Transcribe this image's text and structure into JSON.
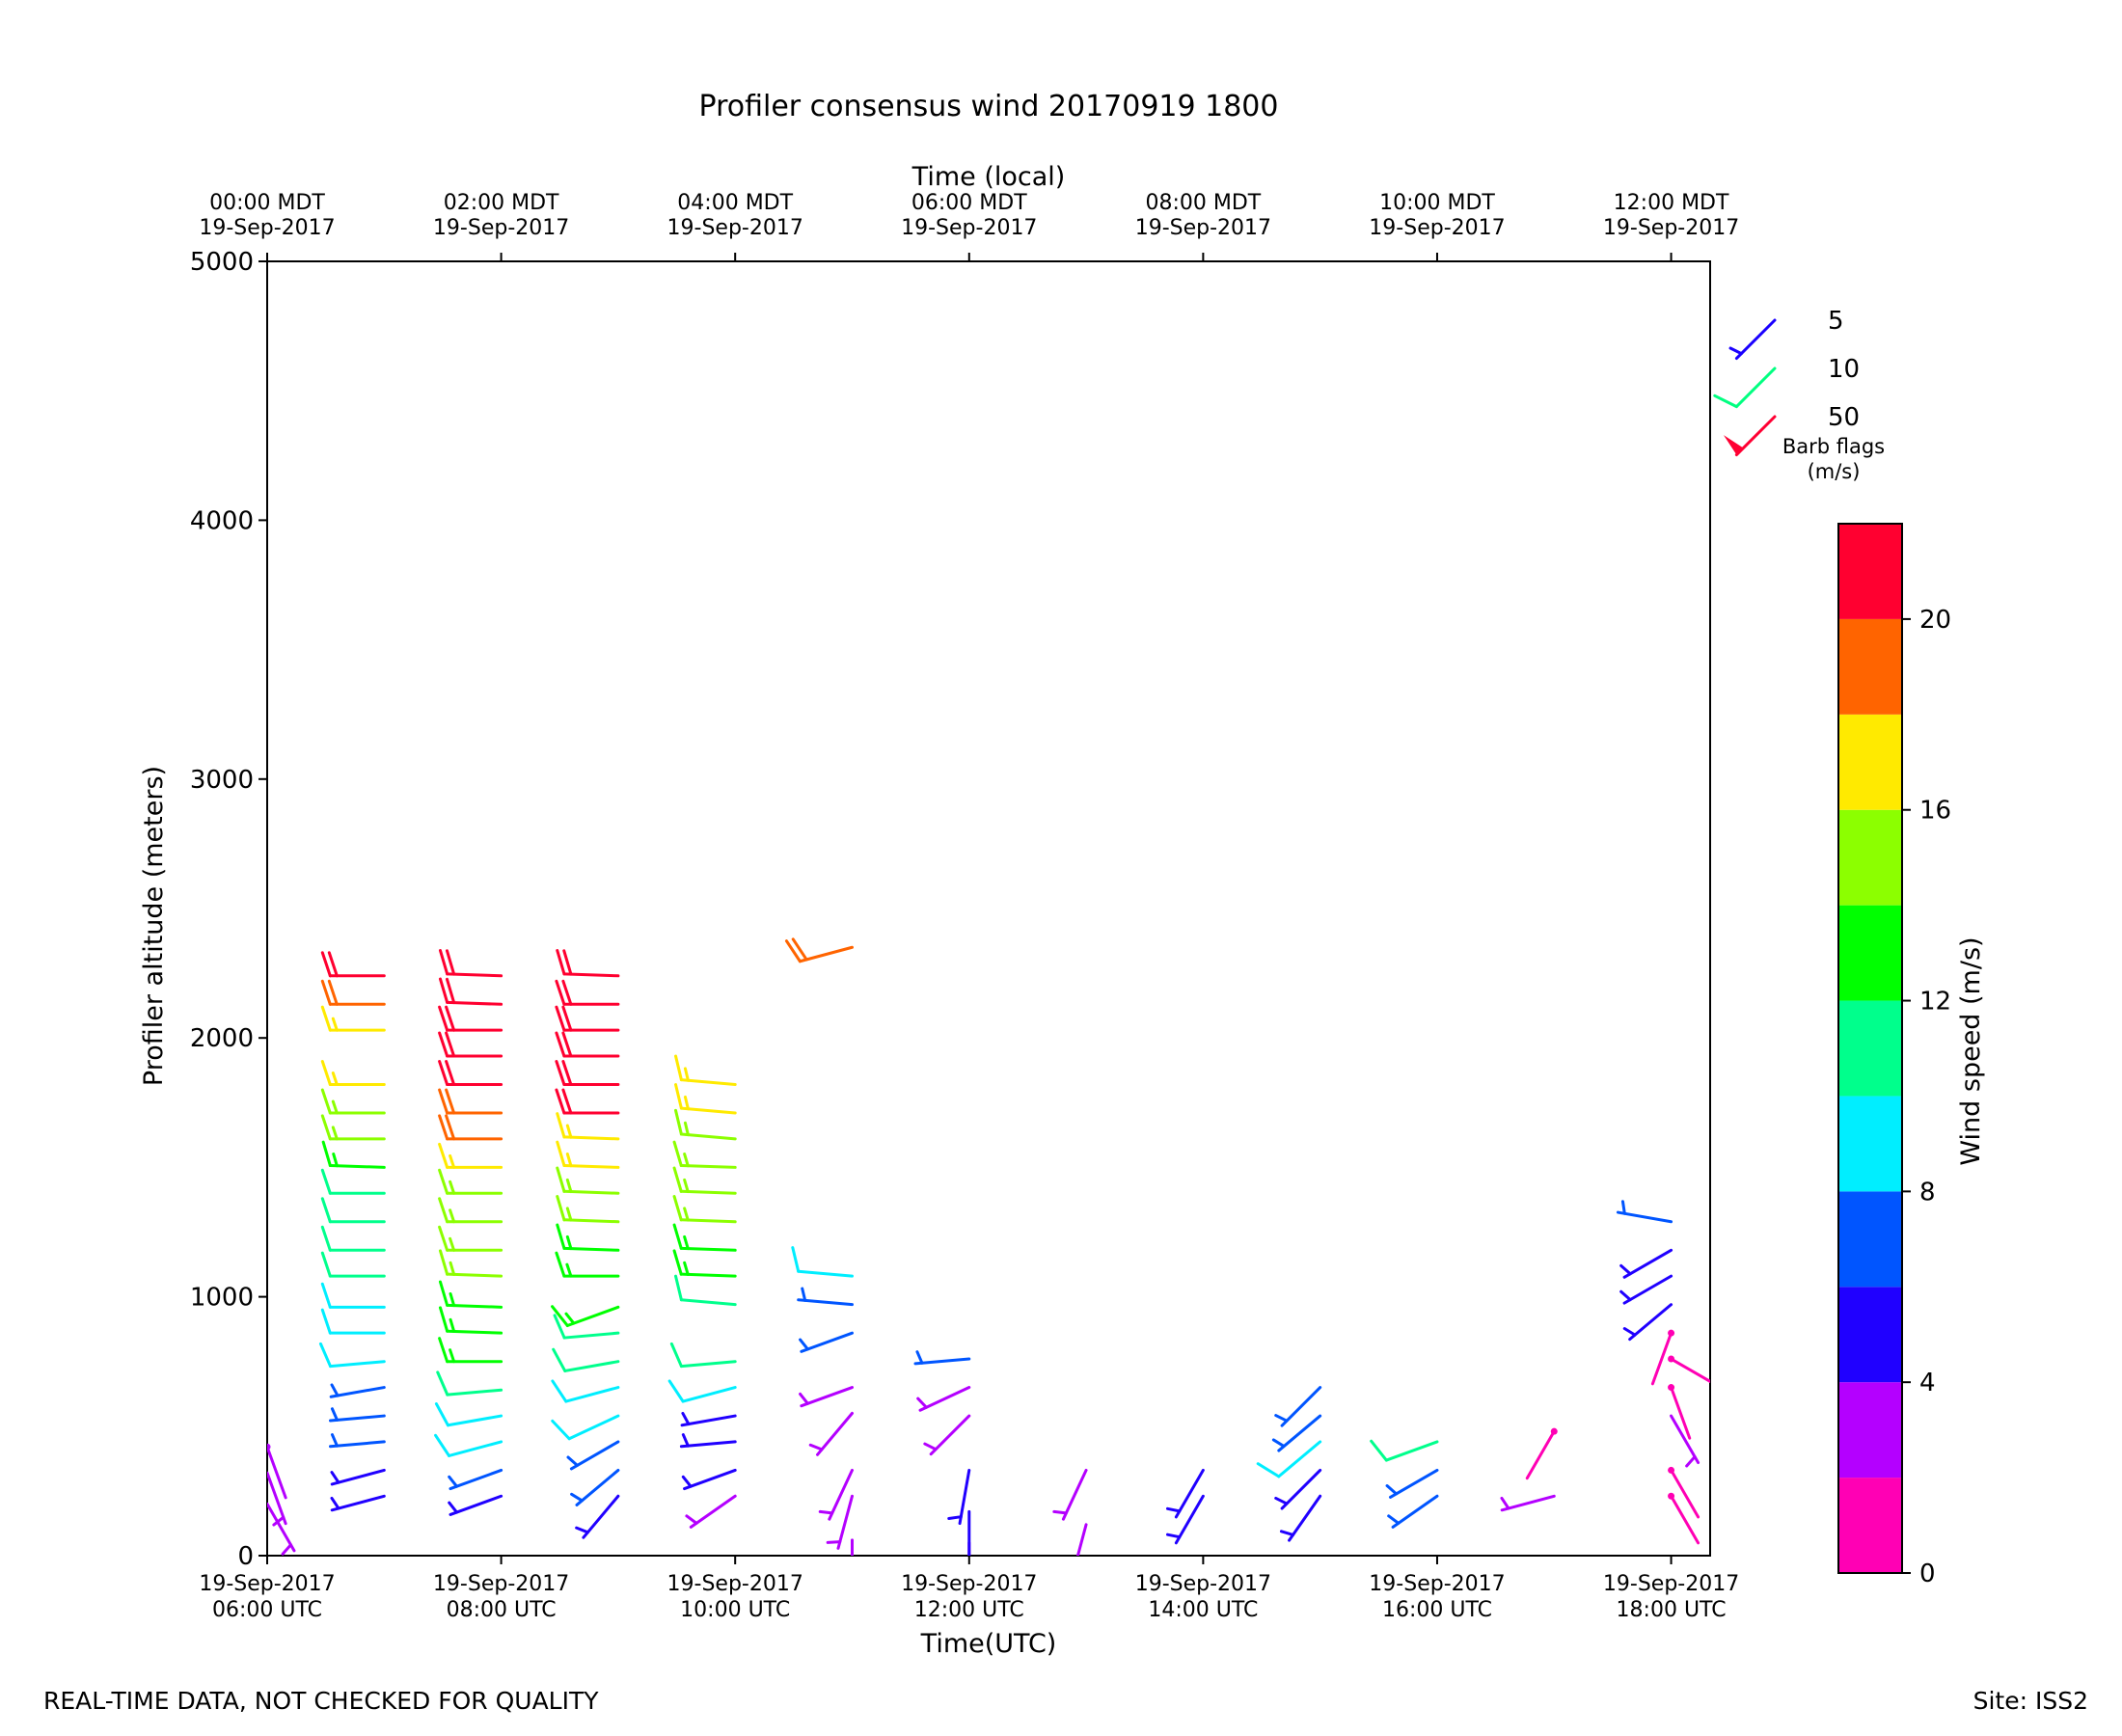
{
  "title": "Profiler consensus wind 20170919 1800",
  "footer_left": "REAL-TIME DATA, NOT CHECKED FOR QUALITY",
  "footer_right": "Site: ISS2",
  "legend": {
    "items": [
      {
        "label": "5",
        "value": 5,
        "color": "#1a00ff"
      },
      {
        "label": "10",
        "value": 10,
        "color": "#00ff80"
      },
      {
        "label": "50",
        "value": 50,
        "color": "#ff0033"
      }
    ],
    "caption_line1": "Barb flags",
    "caption_line2": "(m/s)"
  },
  "colorbar": {
    "label": "Wind speed (m/s)",
    "range": [
      0,
      22
    ],
    "bins": [
      {
        "min": 0,
        "max": 2,
        "color": "#ff00b4"
      },
      {
        "min": 2,
        "max": 4,
        "color": "#b400ff"
      },
      {
        "min": 4,
        "max": 6,
        "color": "#2000ff"
      },
      {
        "min": 6,
        "max": 8,
        "color": "#0055ff"
      },
      {
        "min": 8,
        "max": 10,
        "color": "#00eeff"
      },
      {
        "min": 10,
        "max": 12,
        "color": "#00ff8c"
      },
      {
        "min": 12,
        "max": 14,
        "color": "#00ff00"
      },
      {
        "min": 14,
        "max": 16,
        "color": "#8cff00"
      },
      {
        "min": 16,
        "max": 18,
        "color": "#ffea00"
      },
      {
        "min": 18,
        "max": 20,
        "color": "#ff6400"
      },
      {
        "min": 20,
        "max": 22,
        "color": "#ff0030"
      }
    ],
    "ticks": [
      {
        "value": 0,
        "label": "0"
      },
      {
        "value": 4,
        "label": "4"
      },
      {
        "value": 8,
        "label": "8"
      },
      {
        "value": 12,
        "label": "12"
      },
      {
        "value": 16,
        "label": "16"
      },
      {
        "value": 20,
        "label": "20"
      }
    ]
  },
  "chart_data": {
    "type": "wind_barbs",
    "title": "Profiler consensus wind 20170919 1800",
    "xlabel": "Time(UTC)",
    "xlabel_top": "Time (local)",
    "ylabel": "Profiler altitude (meters)",
    "xlim": [
      "2017-09-19T06:00Z",
      "2017-09-19T18:20Z"
    ],
    "ylim": [
      0,
      5000
    ],
    "yticks": [
      0,
      1000,
      2000,
      3000,
      4000,
      5000
    ],
    "xticks_bottom": [
      {
        "line1": "19-Sep-2017",
        "line2": "06:00 UTC",
        "time": "2017-09-19T06:00Z"
      },
      {
        "line1": "19-Sep-2017",
        "line2": "08:00 UTC",
        "time": "2017-09-19T08:00Z"
      },
      {
        "line1": "19-Sep-2017",
        "line2": "10:00 UTC",
        "time": "2017-09-19T10:00Z"
      },
      {
        "line1": "19-Sep-2017",
        "line2": "12:00 UTC",
        "time": "2017-09-19T12:00Z"
      },
      {
        "line1": "19-Sep-2017",
        "line2": "14:00 UTC",
        "time": "2017-09-19T14:00Z"
      },
      {
        "line1": "19-Sep-2017",
        "line2": "16:00 UTC",
        "time": "2017-09-19T16:00Z"
      },
      {
        "line1": "19-Sep-2017",
        "line2": "18:00 UTC",
        "time": "2017-09-19T18:00Z"
      }
    ],
    "xticks_top": [
      {
        "line1": "00:00 MDT",
        "line2": "19-Sep-2017",
        "time": "2017-09-19T06:00Z"
      },
      {
        "line1": "02:00 MDT",
        "line2": "19-Sep-2017",
        "time": "2017-09-19T08:00Z"
      },
      {
        "line1": "04:00 MDT",
        "line2": "19-Sep-2017",
        "time": "2017-09-19T10:00Z"
      },
      {
        "line1": "06:00 MDT",
        "line2": "19-Sep-2017",
        "time": "2017-09-19T12:00Z"
      },
      {
        "line1": "08:00 MDT",
        "line2": "19-Sep-2017",
        "time": "2017-09-19T14:00Z"
      },
      {
        "line1": "10:00 MDT",
        "line2": "19-Sep-2017",
        "time": "2017-09-19T16:00Z"
      },
      {
        "line1": "12:00 MDT",
        "line2": "19-Sep-2017",
        "time": "2017-09-19T18:00Z"
      }
    ],
    "profiles": [
      {
        "time": "2017-09-19T06:00Z",
        "levels": [
          {
            "alt": 200,
            "speed": 3,
            "dir": 150
          },
          {
            "alt": 320,
            "speed": 3,
            "dir": 160
          },
          {
            "alt": 420,
            "speed": 2,
            "dir": 160
          }
        ]
      },
      {
        "time": "2017-09-19T07:00Z",
        "levels": [
          {
            "alt": 230,
            "speed": 5,
            "dir": 255
          },
          {
            "alt": 330,
            "speed": 5,
            "dir": 255
          },
          {
            "alt": 440,
            "speed": 6,
            "dir": 265
          },
          {
            "alt": 540,
            "speed": 6,
            "dir": 265
          },
          {
            "alt": 650,
            "speed": 7,
            "dir": 260
          },
          {
            "alt": 750,
            "speed": 9,
            "dir": 265
          },
          {
            "alt": 860,
            "speed": 9,
            "dir": 270
          },
          {
            "alt": 960,
            "speed": 9,
            "dir": 270
          },
          {
            "alt": 1080,
            "speed": 11,
            "dir": 270
          },
          {
            "alt": 1180,
            "speed": 11,
            "dir": 270
          },
          {
            "alt": 1290,
            "speed": 11,
            "dir": 270
          },
          {
            "alt": 1400,
            "speed": 11,
            "dir": 270
          },
          {
            "alt": 1500,
            "speed": 13,
            "dir": 272
          },
          {
            "alt": 1610,
            "speed": 15,
            "dir": 270
          },
          {
            "alt": 1710,
            "speed": 15,
            "dir": 270
          },
          {
            "alt": 1820,
            "speed": 17,
            "dir": 270
          },
          {
            "alt": 2030,
            "speed": 17,
            "dir": 270
          },
          {
            "alt": 2130,
            "speed": 19,
            "dir": 270
          },
          {
            "alt": 2240,
            "speed": 21,
            "dir": 270
          }
        ]
      },
      {
        "time": "2017-09-19T08:00Z",
        "levels": [
          {
            "alt": 230,
            "speed": 5,
            "dir": 250
          },
          {
            "alt": 330,
            "speed": 6,
            "dir": 250
          },
          {
            "alt": 440,
            "speed": 9,
            "dir": 255
          },
          {
            "alt": 540,
            "speed": 9,
            "dir": 260
          },
          {
            "alt": 640,
            "speed": 11,
            "dir": 265
          },
          {
            "alt": 750,
            "speed": 13,
            "dir": 270
          },
          {
            "alt": 860,
            "speed": 13,
            "dir": 272
          },
          {
            "alt": 960,
            "speed": 13,
            "dir": 272
          },
          {
            "alt": 1080,
            "speed": 15,
            "dir": 272
          },
          {
            "alt": 1180,
            "speed": 15,
            "dir": 270
          },
          {
            "alt": 1290,
            "speed": 15,
            "dir": 270
          },
          {
            "alt": 1400,
            "speed": 15,
            "dir": 270
          },
          {
            "alt": 1500,
            "speed": 17,
            "dir": 270
          },
          {
            "alt": 1610,
            "speed": 19,
            "dir": 270
          },
          {
            "alt": 1710,
            "speed": 19,
            "dir": 270
          },
          {
            "alt": 1820,
            "speed": 21,
            "dir": 270
          },
          {
            "alt": 1930,
            "speed": 21,
            "dir": 270
          },
          {
            "alt": 2030,
            "speed": 21,
            "dir": 270
          },
          {
            "alt": 2130,
            "speed": 21,
            "dir": 272
          },
          {
            "alt": 2240,
            "speed": 21,
            "dir": 272
          }
        ]
      },
      {
        "time": "2017-09-19T09:00Z",
        "levels": [
          {
            "alt": 230,
            "speed": 5,
            "dir": 220
          },
          {
            "alt": 330,
            "speed": 7,
            "dir": 230
          },
          {
            "alt": 440,
            "speed": 7,
            "dir": 240
          },
          {
            "alt": 540,
            "speed": 9,
            "dir": 245
          },
          {
            "alt": 650,
            "speed": 9,
            "dir": 255
          },
          {
            "alt": 750,
            "speed": 11,
            "dir": 260
          },
          {
            "alt": 860,
            "speed": 11,
            "dir": 265
          },
          {
            "alt": 960,
            "speed": 13,
            "dir": 250
          },
          {
            "alt": 1080,
            "speed": 13,
            "dir": 270
          },
          {
            "alt": 1180,
            "speed": 13,
            "dir": 272
          },
          {
            "alt": 1290,
            "speed": 15,
            "dir": 272
          },
          {
            "alt": 1400,
            "speed": 15,
            "dir": 272
          },
          {
            "alt": 1500,
            "speed": 17,
            "dir": 272
          },
          {
            "alt": 1610,
            "speed": 17,
            "dir": 272
          },
          {
            "alt": 1710,
            "speed": 21,
            "dir": 270
          },
          {
            "alt": 1820,
            "speed": 21,
            "dir": 270
          },
          {
            "alt": 1930,
            "speed": 21,
            "dir": 270
          },
          {
            "alt": 2030,
            "speed": 21,
            "dir": 270
          },
          {
            "alt": 2130,
            "speed": 21,
            "dir": 270
          },
          {
            "alt": 2240,
            "speed": 21,
            "dir": 272
          }
        ]
      },
      {
        "time": "2017-09-19T10:00Z",
        "levels": [
          {
            "alt": 230,
            "speed": 3,
            "dir": 235
          },
          {
            "alt": 330,
            "speed": 5,
            "dir": 250
          },
          {
            "alt": 440,
            "speed": 5,
            "dir": 265
          },
          {
            "alt": 540,
            "speed": 5,
            "dir": 260
          },
          {
            "alt": 650,
            "speed": 9,
            "dir": 255
          },
          {
            "alt": 750,
            "speed": 11,
            "dir": 265
          },
          {
            "alt": 970,
            "speed": 11,
            "dir": 275
          },
          {
            "alt": 1080,
            "speed": 13,
            "dir": 272
          },
          {
            "alt": 1180,
            "speed": 13,
            "dir": 272
          },
          {
            "alt": 1290,
            "speed": 15,
            "dir": 272
          },
          {
            "alt": 1400,
            "speed": 15,
            "dir": 272
          },
          {
            "alt": 1500,
            "speed": 15,
            "dir": 272
          },
          {
            "alt": 1610,
            "speed": 15,
            "dir": 275
          },
          {
            "alt": 1710,
            "speed": 17,
            "dir": 275
          },
          {
            "alt": 1820,
            "speed": 17,
            "dir": 275
          }
        ]
      },
      {
        "time": "2017-09-19T11:00Z",
        "levels": [
          {
            "alt": 60,
            "speed": 3,
            "dir": 180
          },
          {
            "alt": 230,
            "speed": 3,
            "dir": 195
          },
          {
            "alt": 330,
            "speed": 3,
            "dir": 205
          },
          {
            "alt": 550,
            "speed": 3,
            "dir": 220
          },
          {
            "alt": 650,
            "speed": 3,
            "dir": 250
          },
          {
            "alt": 860,
            "speed": 7,
            "dir": 250
          },
          {
            "alt": 970,
            "speed": 7,
            "dir": 275
          },
          {
            "alt": 1080,
            "speed": 9,
            "dir": 275
          },
          {
            "alt": 2350,
            "speed": 19,
            "dir": 255
          }
        ]
      },
      {
        "time": "2017-09-19T12:00Z",
        "levels": [
          {
            "alt": 50,
            "speed": 3,
            "dir": 180
          },
          {
            "alt": 170,
            "speed": 5,
            "dir": 180
          },
          {
            "alt": 330,
            "speed": 5,
            "dir": 190
          },
          {
            "alt": 540,
            "speed": 3,
            "dir": 225
          },
          {
            "alt": 650,
            "speed": 3,
            "dir": 245
          },
          {
            "alt": 760,
            "speed": 7,
            "dir": 265
          }
        ]
      },
      {
        "time": "2017-09-19T13:00Z",
        "levels": [
          {
            "alt": 120,
            "speed": 3,
            "dir": 195
          },
          {
            "alt": 330,
            "speed": 3,
            "dir": 205
          }
        ]
      },
      {
        "time": "2017-09-19T14:00Z",
        "levels": [
          {
            "alt": 230,
            "speed": 5,
            "dir": 210
          },
          {
            "alt": 330,
            "speed": 5,
            "dir": 210
          }
        ]
      },
      {
        "time": "2017-09-19T15:00Z",
        "levels": [
          {
            "alt": 230,
            "speed": 5,
            "dir": 215
          },
          {
            "alt": 330,
            "speed": 5,
            "dir": 225
          },
          {
            "alt": 440,
            "speed": 9,
            "dir": 230
          },
          {
            "alt": 540,
            "speed": 7,
            "dir": 230
          },
          {
            "alt": 650,
            "speed": 7,
            "dir": 225
          }
        ]
      },
      {
        "time": "2017-09-19T16:00Z",
        "levels": [
          {
            "alt": 230,
            "speed": 7,
            "dir": 235
          },
          {
            "alt": 330,
            "speed": 7,
            "dir": 240
          },
          {
            "alt": 440,
            "speed": 11,
            "dir": 250
          }
        ]
      },
      {
        "time": "2017-09-19T17:00Z",
        "levels": [
          {
            "alt": 230,
            "speed": 3,
            "dir": 255
          },
          {
            "alt": 480,
            "speed": 1,
            "dir": 210
          }
        ]
      },
      {
        "time": "2017-09-19T18:00Z",
        "levels": [
          {
            "alt": 230,
            "speed": 1,
            "dir": 150
          },
          {
            "alt": 330,
            "speed": 1,
            "dir": 150
          },
          {
            "alt": 540,
            "speed": 3,
            "dir": 150
          },
          {
            "alt": 650,
            "speed": 1,
            "dir": 160
          },
          {
            "alt": 760,
            "speed": 1,
            "dir": 120
          },
          {
            "alt": 860,
            "speed": 1,
            "dir": 200
          },
          {
            "alt": 970,
            "speed": 5,
            "dir": 230
          },
          {
            "alt": 1080,
            "speed": 5,
            "dir": 240
          },
          {
            "alt": 1180,
            "speed": 5,
            "dir": 240
          },
          {
            "alt": 1290,
            "speed": 7,
            "dir": 280
          }
        ]
      }
    ]
  }
}
